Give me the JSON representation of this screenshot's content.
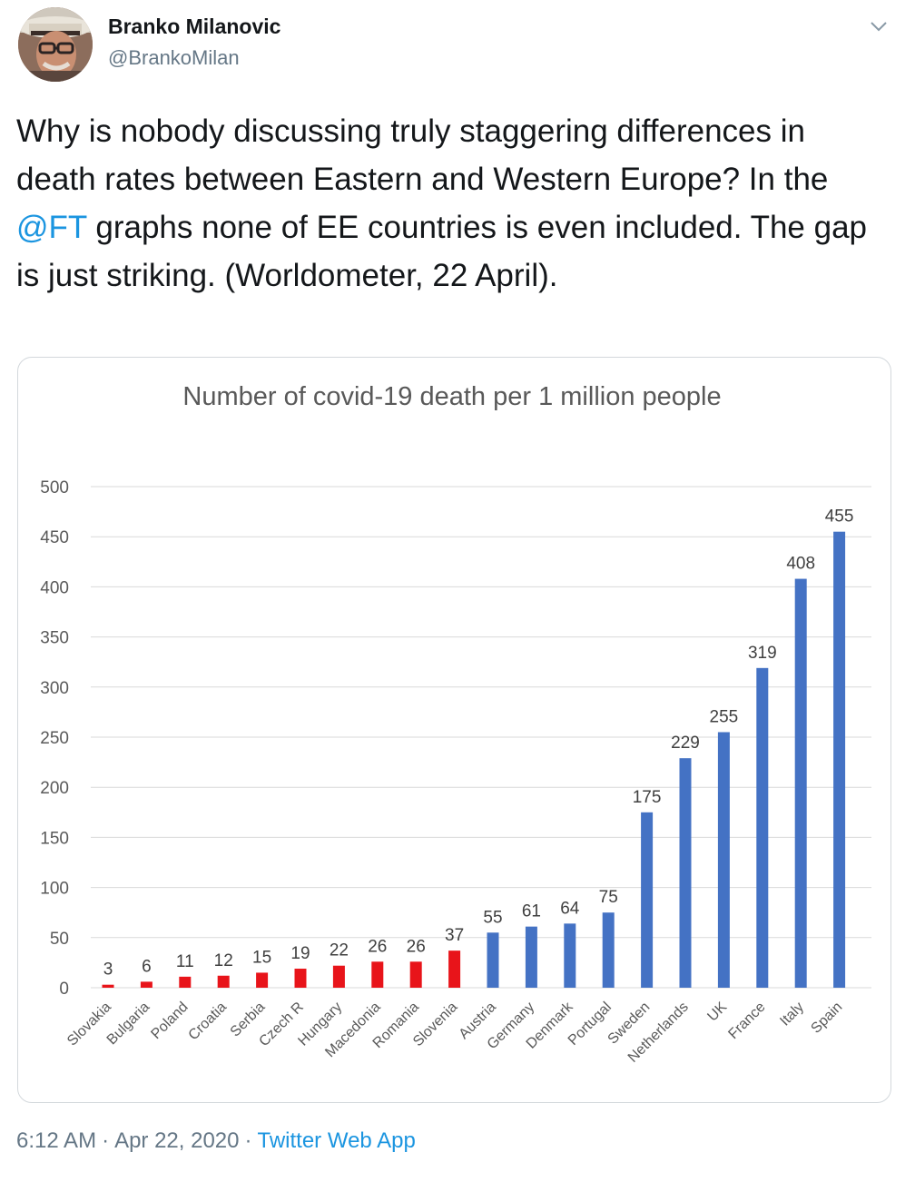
{
  "tweet": {
    "author_name": "Branko Milanovic",
    "author_handle": "@BrankoMilan",
    "text_before": "Why is nobody discussing truly staggering differences in death rates between Eastern and Western Europe? In the ",
    "mention": "@FT",
    "text_after": " graphs none of EE countries is even included.  The gap is just striking. (Worldometer, 22 April).",
    "time": "6:12 AM",
    "date": "Apr 22, 2020",
    "separator": "·",
    "source": "Twitter Web App",
    "menu_icon": "chevron-down-icon"
  },
  "colors": {
    "link": "#1b95e0",
    "secondary_text": "#657786",
    "east_bar": "#e8141a",
    "west_bar": "#4472c4"
  },
  "chart_data": {
    "type": "bar",
    "title": "Number of covid-19 death per 1 million people",
    "categories": [
      "Slovakia",
      "Bulgaria",
      "Poland",
      "Croatia",
      "Serbia",
      "Czech R",
      "Hungary",
      "Macedonia",
      "Romania",
      "Slovenia",
      "Austria",
      "Germany",
      "Denmark",
      "Portugal",
      "Sweden",
      "Netherlands",
      "UK",
      "France",
      "Italy",
      "Spain"
    ],
    "values": [
      3,
      6,
      11,
      12,
      15,
      19,
      22,
      26,
      26,
      37,
      55,
      61,
      64,
      75,
      175,
      229,
      255,
      319,
      408,
      455
    ],
    "bar_colors": [
      "#e8141a",
      "#e8141a",
      "#e8141a",
      "#e8141a",
      "#e8141a",
      "#e8141a",
      "#e8141a",
      "#e8141a",
      "#e8141a",
      "#e8141a",
      "#4472c4",
      "#4472c4",
      "#4472c4",
      "#4472c4",
      "#4472c4",
      "#4472c4",
      "#4472c4",
      "#4472c4",
      "#4472c4",
      "#4472c4"
    ],
    "yticks": [
      0,
      50,
      100,
      150,
      200,
      250,
      300,
      350,
      400,
      450,
      500
    ],
    "ylim": [
      0,
      500
    ],
    "xlabel": "",
    "ylabel": "",
    "grid": true,
    "data_labels": true
  }
}
